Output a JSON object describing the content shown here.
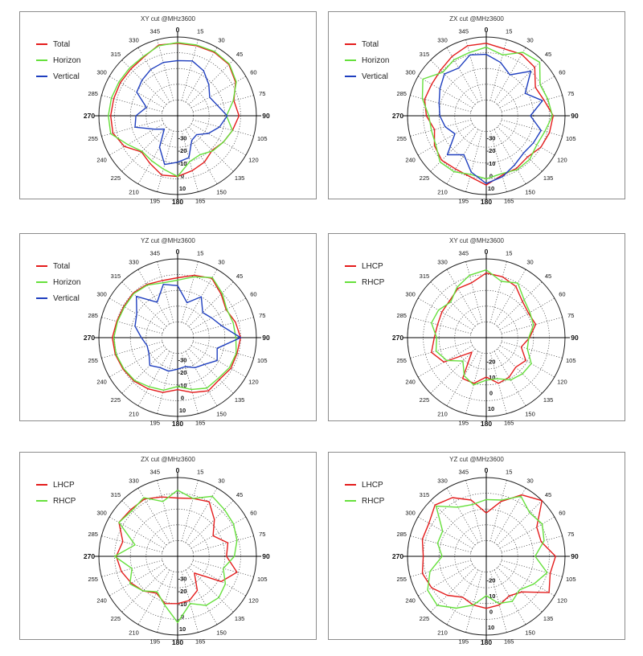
{
  "chart_data": [
    {
      "type": "polar",
      "title": "XY cut @MHz3600",
      "angles": [
        0,
        15,
        30,
        45,
        60,
        75,
        90,
        105,
        120,
        135,
        150,
        165,
        180,
        195,
        210,
        225,
        240,
        255,
        270,
        285,
        300,
        315,
        330,
        345
      ],
      "r_labels": [
        "-30",
        "-20",
        "-10",
        "0",
        "10"
      ],
      "series": [
        {
          "name": "Total",
          "color": "#e41c1c",
          "values": [
            0.92,
            0.92,
            0.93,
            0.92,
            0.85,
            0.74,
            0.78,
            0.72,
            0.67,
            0.62,
            0.68,
            0.72,
            0.77,
            0.78,
            0.7,
            0.65,
            0.78,
            0.85,
            0.85,
            0.84,
            0.84,
            0.84,
            0.86,
            0.93
          ]
        },
        {
          "name": "Horizon",
          "color": "#66e03c",
          "values": [
            0.93,
            0.93,
            0.94,
            0.93,
            0.86,
            0.73,
            0.62,
            0.72,
            0.67,
            0.63,
            0.57,
            0.6,
            0.77,
            0.7,
            0.66,
            0.64,
            0.73,
            0.88,
            0.88,
            0.87,
            0.86,
            0.86,
            0.87,
            0.92
          ]
        },
        {
          "name": "Vertical",
          "color": "#1f3fbf",
          "values": [
            0.7,
            0.72,
            0.66,
            0.56,
            0.47,
            0.52,
            0.63,
            0.55,
            0.45,
            0.34,
            0.36,
            0.55,
            0.59,
            0.64,
            0.46,
            0.24,
            0.34,
            0.56,
            0.53,
            0.41,
            0.6,
            0.64,
            0.68,
            0.7
          ]
        }
      ]
    },
    {
      "type": "polar",
      "title": "ZX cut @MHz3600",
      "angles": [
        0,
        15,
        30,
        45,
        60,
        75,
        90,
        105,
        120,
        135,
        150,
        165,
        180,
        195,
        210,
        225,
        240,
        255,
        270,
        285,
        300,
        315,
        330,
        345
      ],
      "r_labels": [
        "-30",
        "-20",
        "-10",
        "0",
        "10"
      ],
      "series": [
        {
          "name": "Total",
          "color": "#e41c1c",
          "values": [
            0.92,
            0.88,
            0.9,
            0.87,
            0.72,
            0.76,
            0.85,
            0.83,
            0.8,
            0.74,
            0.77,
            0.78,
            0.88,
            0.8,
            0.78,
            0.8,
            0.76,
            0.68,
            0.76,
            0.81,
            0.8,
            0.82,
            0.87,
            0.92
          ]
        },
        {
          "name": "Horizon",
          "color": "#66e03c",
          "values": [
            0.87,
            0.8,
            0.93,
            0.96,
            0.79,
            0.81,
            0.84,
            0.77,
            0.74,
            0.78,
            0.79,
            0.76,
            0.8,
            0.77,
            0.82,
            0.83,
            0.74,
            0.72,
            0.73,
            0.84,
            0.93,
            0.78,
            0.82,
            0.83
          ]
        },
        {
          "name": "Vertical",
          "color": "#1f3fbf",
          "values": [
            0.78,
            0.7,
            0.6,
            0.8,
            0.57,
            0.74,
            0.56,
            0.72,
            0.69,
            0.67,
            0.72,
            0.8,
            0.86,
            0.74,
            0.57,
            0.7,
            0.46,
            0.54,
            0.59,
            0.62,
            0.68,
            0.75,
            0.7,
            0.8
          ]
        }
      ]
    },
    {
      "type": "polar",
      "title": "YZ cut @MHz3600",
      "angles": [
        0,
        15,
        30,
        45,
        60,
        75,
        90,
        105,
        120,
        135,
        150,
        165,
        180,
        195,
        210,
        225,
        240,
        255,
        270,
        285,
        300,
        315,
        330,
        345
      ],
      "r_labels": [
        "-30",
        "-20",
        "-10",
        "0",
        "10"
      ],
      "series": [
        {
          "name": "Total",
          "color": "#e41c1c",
          "values": [
            0.76,
            0.82,
            0.87,
            0.78,
            0.71,
            0.76,
            0.8,
            0.78,
            0.78,
            0.75,
            0.78,
            0.72,
            0.66,
            0.72,
            0.75,
            0.78,
            0.8,
            0.82,
            0.83,
            0.8,
            0.79,
            0.8,
            0.78,
            0.75
          ]
        },
        {
          "name": "Horizon",
          "color": "#66e03c",
          "values": [
            0.73,
            0.8,
            0.88,
            0.8,
            0.72,
            0.73,
            0.74,
            0.77,
            0.76,
            0.73,
            0.74,
            0.68,
            0.62,
            0.69,
            0.72,
            0.77,
            0.79,
            0.81,
            0.81,
            0.79,
            0.78,
            0.79,
            0.77,
            0.72
          ]
        },
        {
          "name": "Vertical",
          "color": "#1f3fbf",
          "values": [
            0.66,
            0.46,
            0.6,
            0.45,
            0.5,
            0.58,
            0.8,
            0.52,
            0.58,
            0.48,
            0.44,
            0.38,
            0.4,
            0.44,
            0.44,
            0.5,
            0.42,
            0.4,
            0.46,
            0.56,
            0.6,
            0.74,
            0.52,
            0.7
          ]
        }
      ]
    },
    {
      "type": "polar",
      "title": "XY cut @MHz3600",
      "angles": [
        0,
        15,
        30,
        45,
        60,
        75,
        90,
        105,
        120,
        135,
        150,
        165,
        180,
        195,
        210,
        225,
        240,
        255,
        270,
        285,
        300,
        315,
        330,
        345
      ],
      "r_labels": [
        "-20",
        "-10",
        "0",
        "10"
      ],
      "series": [
        {
          "name": "LHCP",
          "color": "#e41c1c",
          "values": [
            0.82,
            0.8,
            0.75,
            0.65,
            0.62,
            0.65,
            0.55,
            0.46,
            0.58,
            0.53,
            0.58,
            0.6,
            0.5,
            0.6,
            0.6,
            0.26,
            0.62,
            0.72,
            0.66,
            0.64,
            0.65,
            0.66,
            0.72,
            0.72
          ]
        },
        {
          "name": "RHCP",
          "color": "#66e03c",
          "values": [
            0.86,
            0.74,
            0.8,
            0.68,
            0.64,
            0.62,
            0.54,
            0.54,
            0.66,
            0.65,
            0.62,
            0.54,
            0.54,
            0.62,
            0.56,
            0.42,
            0.58,
            0.66,
            0.63,
            0.72,
            0.7,
            0.64,
            0.74,
            0.82
          ]
        }
      ]
    },
    {
      "type": "polar",
      "title": "ZX cut @MHz3600",
      "angles": [
        0,
        15,
        30,
        45,
        60,
        75,
        90,
        105,
        120,
        135,
        150,
        165,
        180,
        195,
        210,
        225,
        240,
        255,
        270,
        285,
        300,
        315,
        330,
        345
      ],
      "r_labels": [
        "-30",
        "-20",
        "-10",
        "0",
        "10"
      ],
      "series": [
        {
          "name": "LHCP",
          "color": "#e41c1c",
          "values": [
            0.74,
            0.76,
            0.8,
            0.66,
            0.52,
            0.66,
            0.62,
            0.78,
            0.64,
            0.3,
            0.5,
            0.58,
            0.6,
            0.62,
            0.54,
            0.62,
            0.68,
            0.74,
            0.78,
            0.72,
            0.86,
            0.84,
            0.84,
            0.78
          ]
        },
        {
          "name": "RHCP",
          "color": "#66e03c",
          "values": [
            0.84,
            0.76,
            0.88,
            0.84,
            0.82,
            0.78,
            0.72,
            0.6,
            0.7,
            0.74,
            0.72,
            0.62,
            0.84,
            0.64,
            0.52,
            0.62,
            0.7,
            0.6,
            0.8,
            0.56,
            0.86,
            0.82,
            0.86,
            0.72
          ]
        }
      ]
    },
    {
      "type": "polar",
      "title": "YZ cut @MHz3600",
      "angles": [
        0,
        15,
        30,
        45,
        60,
        75,
        90,
        105,
        120,
        135,
        150,
        165,
        180,
        195,
        210,
        225,
        240,
        255,
        270,
        285,
        300,
        315,
        330,
        345
      ],
      "r_labels": [
        "-20",
        "-10",
        "0",
        "10"
      ],
      "series": [
        {
          "name": "LHCP",
          "color": "#e41c1c",
          "values": [
            0.55,
            0.72,
            0.9,
            1.0,
            0.74,
            0.72,
            0.88,
            0.84,
            0.92,
            0.64,
            0.58,
            0.64,
            0.66,
            0.64,
            0.6,
            0.7,
            0.8,
            0.84,
            0.8,
            0.84,
            0.84,
            0.92,
            0.86,
            0.74
          ]
        },
        {
          "name": "RHCP",
          "color": "#66e03c",
          "values": [
            0.72,
            0.74,
            0.88,
            0.78,
            0.82,
            0.76,
            0.62,
            0.8,
            0.7,
            0.6,
            0.66,
            0.62,
            0.5,
            0.64,
            0.76,
            0.88,
            0.86,
            0.74,
            0.56,
            0.64,
            0.64,
            0.9,
            0.72,
            0.68
          ]
        }
      ]
    }
  ]
}
